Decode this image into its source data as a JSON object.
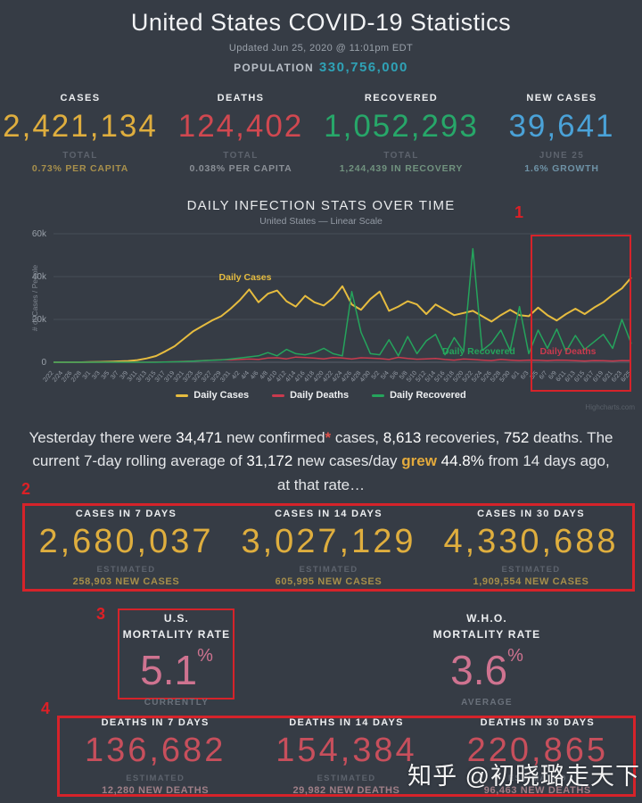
{
  "header": {
    "title": "United States COVID-19 Statistics",
    "updated": "Updated Jun 25, 2020 @ 11:01pm EDT",
    "population_label": "POPULATION",
    "population_value": "330,756,000"
  },
  "colors": {
    "cases_gold": "#dfae3e",
    "deaths_red": "#d04850",
    "recovered_green": "#27a769",
    "new_cases_blue": "#4aa2d8",
    "mortality_pink": "#cf7390",
    "annotation_red": "#d6232a"
  },
  "summary_stats": [
    {
      "label": "CASES",
      "value": "2,421,134",
      "total": "TOTAL",
      "sub": "0.73% PER CAPITA",
      "color": "#dfae3e",
      "sub_color": "#a8904c"
    },
    {
      "label": "DEATHS",
      "value": "124,402",
      "total": "TOTAL",
      "sub": "0.038% PER CAPITA",
      "color": "#d04850",
      "sub_color": "#8b9097"
    },
    {
      "label": "RECOVERED",
      "value": "1,052,293",
      "total": "TOTAL",
      "sub": "1,244,439 IN RECOVERY",
      "color": "#27a769",
      "sub_color": "#71937f"
    },
    {
      "label": "NEW CASES",
      "value": "39,641",
      "total": "JUNE 25",
      "sub": "1.6% GROWTH",
      "color": "#4aa2d8",
      "sub_color": "#6e92a6"
    }
  ],
  "chart": {
    "title": "DAILY INFECTION STATS OVER TIME",
    "subtitle": "United States — Linear Scale",
    "y_axis_label": "# of Cases / People",
    "credit": "Highcharts.com",
    "legend": [
      {
        "label": "Daily Cases"
      },
      {
        "label": "Daily Deaths"
      },
      {
        "label": "Daily Recovered"
      }
    ]
  },
  "chart_data": {
    "type": "line",
    "title": "DAILY INFECTION STATS OVER TIME",
    "subtitle": "United States — Linear Scale",
    "ylabel": "# of Cases / People",
    "ylim": [
      0,
      60000
    ],
    "grid": true,
    "legend_position": "bottom",
    "y_ticks": [
      {
        "v": 60000,
        "label": "60k"
      },
      {
        "v": 40000,
        "label": "40k"
      },
      {
        "v": 20000,
        "label": "20k"
      },
      {
        "v": 0,
        "label": "0"
      }
    ],
    "categories": [
      "2/22",
      "2/24",
      "2/26",
      "2/28",
      "3/1",
      "3/3",
      "3/5",
      "3/7",
      "3/9",
      "3/11",
      "3/13",
      "3/15",
      "3/17",
      "3/19",
      "3/21",
      "3/23",
      "3/25",
      "3/27",
      "3/29",
      "3/31",
      "4/2",
      "4/4",
      "4/6",
      "4/8",
      "4/10",
      "4/12",
      "4/14",
      "4/16",
      "4/18",
      "4/20",
      "4/22",
      "4/24",
      "4/26",
      "4/28",
      "4/30",
      "5/2",
      "5/4",
      "5/6",
      "5/8",
      "5/10",
      "5/12",
      "5/14",
      "5/16",
      "5/18",
      "5/20",
      "5/22",
      "5/24",
      "5/26",
      "5/28",
      "5/30",
      "6/1",
      "6/3",
      "6/5",
      "6/7",
      "6/9",
      "6/11",
      "6/13",
      "6/15",
      "6/17",
      "6/19",
      "6/21",
      "6/23",
      "6/25"
    ],
    "series": [
      {
        "name": "Daily Cases",
        "color": "#e6bc3f",
        "inline_label": "Daily Cases",
        "values": [
          0,
          0,
          0,
          0,
          100,
          150,
          250,
          400,
          600,
          1000,
          1800,
          2900,
          5100,
          7500,
          11000,
          14500,
          17000,
          19500,
          21500,
          25000,
          29000,
          34000,
          28000,
          32000,
          33500,
          28500,
          26000,
          31000,
          28000,
          26500,
          30000,
          35500,
          27000,
          24500,
          29500,
          33000,
          24000,
          26000,
          28500,
          27000,
          22500,
          27000,
          24500,
          22000,
          23000,
          24000,
          21500,
          19000,
          22000,
          24500,
          22000,
          21500,
          25500,
          22000,
          19500,
          22500,
          25000,
          22500,
          25500,
          28000,
          31500,
          34500,
          39600
        ]
      },
      {
        "name": "Daily Deaths",
        "color": "#c93a4e",
        "inline_label": "Daily Deaths",
        "values": [
          0,
          0,
          0,
          0,
          0,
          0,
          0,
          0,
          0,
          0,
          50,
          100,
          150,
          250,
          400,
          550,
          800,
          1000,
          1200,
          1100,
          1300,
          1500,
          1300,
          2000,
          2100,
          1600,
          2400,
          2200,
          1900,
          1600,
          2200,
          2000,
          1500,
          2100,
          1900,
          1700,
          1300,
          2300,
          1800,
          1400,
          1600,
          1800,
          1300,
          1000,
          1500,
          1300,
          1000,
          800,
          1300,
          1000,
          800,
          1000,
          900,
          700,
          1000,
          900,
          700,
          600,
          800,
          700,
          600,
          800,
          752
        ]
      },
      {
        "name": "Daily Recovered",
        "color": "#25a45c",
        "inline_label": "Daily Recovered",
        "values": [
          0,
          0,
          0,
          0,
          0,
          0,
          0,
          0,
          0,
          0,
          0,
          0,
          100,
          200,
          300,
          500,
          700,
          900,
          1100,
          1500,
          2000,
          2500,
          3000,
          4500,
          3000,
          6000,
          4000,
          3500,
          4500,
          6500,
          4000,
          3000,
          33000,
          14000,
          4000,
          3500,
          10500,
          3000,
          12000,
          4000,
          10000,
          13000,
          3500,
          11500,
          5000,
          53000,
          5500,
          9000,
          15000,
          5500,
          26000,
          4000,
          15000,
          6500,
          15500,
          5000,
          12500,
          6000,
          9500,
          13000,
          6500,
          20000,
          8613
        ]
      }
    ]
  },
  "paragraph": {
    "t1": "Yesterday there were ",
    "b1": "34,471",
    "t2": " new confirmed",
    "ast": "*",
    "t3": " cases, ",
    "b2": "8,613",
    "t4": " recoveries, ",
    "b3": "752",
    "t5": " deaths. The current 7-day rolling average of ",
    "b4": "31,172",
    "t6": " new cases/day ",
    "grew": "grew",
    "t7": " ",
    "b5": "44.8%",
    "t8": " from 14 days ago, at that rate…"
  },
  "cases_projections": [
    {
      "label": "CASES IN 7 DAYS",
      "value": "2,680,037",
      "estimated": "ESTIMATED",
      "sub": "258,903 NEW CASES"
    },
    {
      "label": "CASES IN 14 DAYS",
      "value": "3,027,129",
      "estimated": "ESTIMATED",
      "sub": "605,995 NEW CASES"
    },
    {
      "label": "CASES IN 30 DAYS",
      "value": "4,330,688",
      "estimated": "ESTIMATED",
      "sub": "1,909,554 NEW CASES"
    }
  ],
  "mortality": {
    "us": {
      "line1": "U.S.",
      "line2": "MORTALITY RATE",
      "value": "5.1",
      "pct": "%",
      "sub": "CURRENTLY"
    },
    "who": {
      "line1": "W.H.O.",
      "line2": "MORTALITY RATE",
      "value": "3.6",
      "pct": "%",
      "sub": "AVERAGE"
    }
  },
  "deaths_projections": [
    {
      "label": "DEATHS IN 7 DAYS",
      "value": "136,682",
      "estimated": "ESTIMATED",
      "sub": "12,280 NEW DEATHS"
    },
    {
      "label": "DEATHS IN 14 DAYS",
      "value": "154,384",
      "estimated": "ESTIMATED",
      "sub": "29,982 NEW DEATHS"
    },
    {
      "label": "DEATHS IN 30 DAYS",
      "value": "220,865",
      "estimated": "ESTIMATED",
      "sub": "96,463 NEW DEATHS"
    }
  ],
  "annotations": {
    "n1": "1",
    "n2": "2",
    "n3": "3",
    "n4": "4"
  },
  "watermark": "知乎 @初晓璐走天下"
}
